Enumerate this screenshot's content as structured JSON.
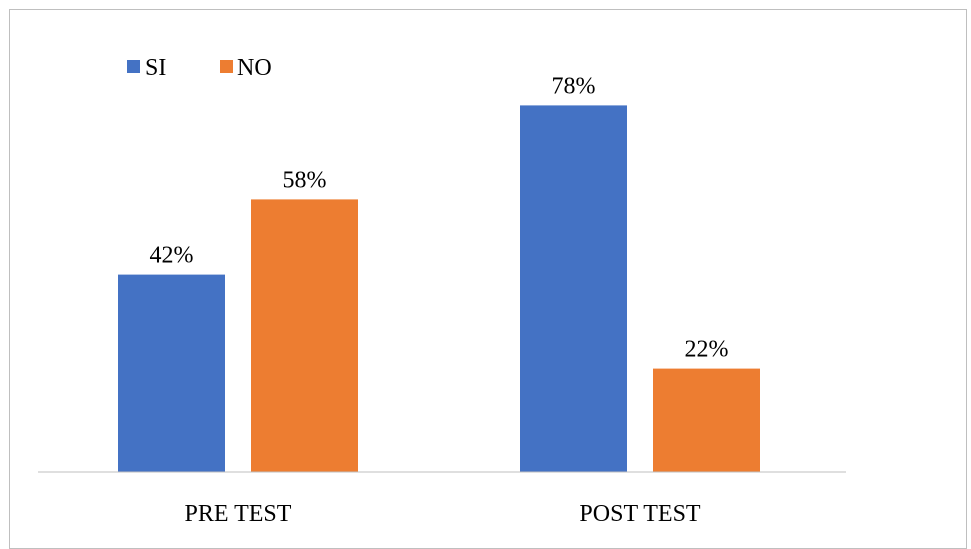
{
  "chart_data": {
    "type": "bar",
    "categories": [
      "PRE TEST",
      "POST TEST"
    ],
    "series": [
      {
        "name": "SI",
        "color": "#4472C4",
        "values": [
          42,
          78
        ],
        "labels": [
          "42%",
          "78%"
        ]
      },
      {
        "name": "NO",
        "color": "#ED7D31",
        "values": [
          58,
          22
        ],
        "labels": [
          "58%",
          "22%"
        ]
      }
    ],
    "value_unit": "%",
    "ylim": [
      0,
      100
    ],
    "grid": false,
    "legend_position": "top-left",
    "axis_line_color": "#bfbfbf"
  }
}
